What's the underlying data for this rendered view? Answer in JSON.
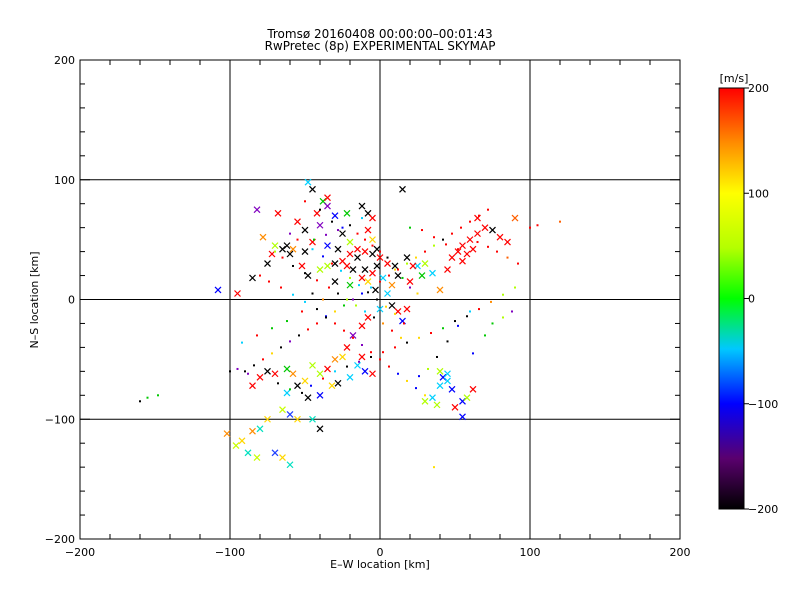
{
  "chart_data": {
    "type": "scatter",
    "title": "Tromsø 20160408 00:00:00–00:01:43",
    "subtitle": "RwPretec (8p) EXPERIMENTAL SKYMAP",
    "xlabel": "E–W location [km]",
    "ylabel": "N–S location [km]",
    "xlim": [
      -200,
      200
    ],
    "ylim": [
      -200,
      200
    ],
    "xticks": [
      "−200",
      "−100",
      "0",
      "100",
      "200"
    ],
    "yticks": [
      "−200",
      "−100",
      "0",
      "100",
      "200"
    ],
    "grid": true,
    "colorbar": {
      "unit": "[m/s]",
      "range": [
        -200,
        200
      ],
      "ticks": [
        "200",
        "100",
        "0",
        "−100",
        "−200"
      ]
    },
    "x_marker_points": [
      [
        -48,
        98
      ],
      [
        -45,
        92
      ],
      [
        -38,
        82
      ],
      [
        -35,
        78
      ],
      [
        -30,
        70
      ],
      [
        -22,
        72
      ],
      [
        -12,
        78
      ],
      [
        -8,
        72
      ],
      [
        -5,
        68
      ],
      [
        -82,
        75
      ],
      [
        -68,
        72
      ],
      [
        -55,
        65
      ],
      [
        -40,
        62
      ],
      [
        -62,
        45
      ],
      [
        -58,
        42
      ],
      [
        -50,
        40
      ],
      [
        -45,
        48
      ],
      [
        -35,
        45
      ],
      [
        -28,
        42
      ],
      [
        -20,
        38
      ],
      [
        -15,
        35
      ],
      [
        -10,
        40
      ],
      [
        -5,
        38
      ],
      [
        0,
        35
      ],
      [
        5,
        30
      ],
      [
        10,
        28
      ],
      [
        -30,
        30
      ],
      [
        -25,
        32
      ],
      [
        -22,
        28
      ],
      [
        -18,
        25
      ],
      [
        -35,
        28
      ],
      [
        -40,
        25
      ],
      [
        -10,
        25
      ],
      [
        -5,
        22
      ],
      [
        -2,
        28
      ],
      [
        -70,
        45
      ],
      [
        -75,
        30
      ],
      [
        -85,
        18
      ],
      [
        -95,
        5
      ],
      [
        -108,
        8
      ],
      [
        -78,
        52
      ],
      [
        -65,
        42
      ],
      [
        -52,
        28
      ],
      [
        -48,
        20
      ],
      [
        -30,
        15
      ],
      [
        -20,
        12
      ],
      [
        -12,
        18
      ],
      [
        -8,
        15
      ],
      [
        2,
        18
      ],
      [
        8,
        12
      ],
      [
        12,
        20
      ],
      [
        20,
        15
      ],
      [
        25,
        28
      ],
      [
        18,
        35
      ],
      [
        30,
        30
      ],
      [
        35,
        22
      ],
      [
        40,
        8
      ],
      [
        45,
        25
      ],
      [
        48,
        35
      ],
      [
        52,
        40
      ],
      [
        55,
        45
      ],
      [
        58,
        38
      ],
      [
        60,
        50
      ],
      [
        62,
        42
      ],
      [
        65,
        55
      ],
      [
        70,
        60
      ],
      [
        75,
        58
      ],
      [
        80,
        52
      ],
      [
        85,
        48
      ],
      [
        90,
        68
      ],
      [
        65,
        68
      ],
      [
        55,
        32
      ],
      [
        -18,
        -30
      ],
      [
        -22,
        -40
      ],
      [
        -25,
        -48
      ],
      [
        -30,
        -50
      ],
      [
        -15,
        -55
      ],
      [
        -10,
        -60
      ],
      [
        -5,
        -62
      ],
      [
        -12,
        -48
      ],
      [
        -20,
        -65
      ],
      [
        -28,
        -70
      ],
      [
        -35,
        -58
      ],
      [
        -40,
        -62
      ],
      [
        -45,
        -55
      ],
      [
        -50,
        -68
      ],
      [
        -58,
        -62
      ],
      [
        -62,
        -58
      ],
      [
        -70,
        -62
      ],
      [
        -75,
        -60
      ],
      [
        -80,
        -65
      ],
      [
        -85,
        -72
      ],
      [
        -62,
        -78
      ],
      [
        -55,
        -72
      ],
      [
        -48,
        -82
      ],
      [
        -40,
        -80
      ],
      [
        -32,
        -72
      ],
      [
        -65,
        -92
      ],
      [
        -60,
        -96
      ],
      [
        -55,
        -100
      ],
      [
        -75,
        -100
      ],
      [
        -80,
        -108
      ],
      [
        -85,
        -110
      ],
      [
        -92,
        -118
      ],
      [
        -96,
        -122
      ],
      [
        -88,
        -128
      ],
      [
        -82,
        -132
      ],
      [
        -70,
        -128
      ],
      [
        -65,
        -132
      ],
      [
        -60,
        -138
      ],
      [
        -45,
        -100
      ],
      [
        -40,
        -108
      ],
      [
        -102,
        -112
      ],
      [
        30,
        -85
      ],
      [
        35,
        -82
      ],
      [
        40,
        -72
      ],
      [
        42,
        -65
      ],
      [
        45,
        -68
      ],
      [
        50,
        -90
      ],
      [
        55,
        -85
      ],
      [
        58,
        -82
      ],
      [
        62,
        -75
      ],
      [
        55,
        -98
      ],
      [
        40,
        -60
      ],
      [
        45,
        -62
      ],
      [
        48,
        -75
      ],
      [
        38,
        -88
      ],
      [
        -5,
        50
      ],
      [
        -15,
        42
      ],
      [
        -20,
        48
      ],
      [
        -25,
        55
      ],
      [
        15,
        92
      ],
      [
        -35,
        85
      ],
      [
        -42,
        72
      ],
      [
        -50,
        58
      ],
      [
        -60,
        38
      ],
      [
        -72,
        38
      ],
      [
        -2,
        42
      ],
      [
        -8,
        58
      ],
      [
        22,
        28
      ],
      [
        28,
        20
      ],
      [
        -12,
        -22
      ],
      [
        -8,
        -15
      ],
      [
        0,
        -8
      ],
      [
        5,
        5
      ],
      [
        -3,
        8
      ],
      [
        8,
        -5
      ],
      [
        12,
        -10
      ],
      [
        15,
        -18
      ],
      [
        18,
        -8
      ]
    ],
    "dot_marker_points": [
      [
        -50,
        82
      ],
      [
        -40,
        75
      ],
      [
        -32,
        65
      ],
      [
        -25,
        60
      ],
      [
        -15,
        55
      ],
      [
        -10,
        50
      ],
      [
        -5,
        45
      ],
      [
        0,
        40
      ],
      [
        5,
        35
      ],
      [
        10,
        25
      ],
      [
        15,
        18
      ],
      [
        20,
        10
      ],
      [
        25,
        5
      ],
      [
        -60,
        55
      ],
      [
        -55,
        50
      ],
      [
        -45,
        42
      ],
      [
        -38,
        36
      ],
      [
        -32,
        30
      ],
      [
        -26,
        24
      ],
      [
        -20,
        18
      ],
      [
        -14,
        12
      ],
      [
        -8,
        6
      ],
      [
        -2,
        0
      ],
      [
        4,
        -6
      ],
      [
        10,
        -12
      ],
      [
        16,
        -20
      ],
      [
        -70,
        40
      ],
      [
        -65,
        35
      ],
      [
        -58,
        28
      ],
      [
        -50,
        22
      ],
      [
        -42,
        16
      ],
      [
        -34,
        10
      ],
      [
        -28,
        5
      ],
      [
        -22,
        0
      ],
      [
        -16,
        -5
      ],
      [
        -10,
        -10
      ],
      [
        -4,
        -15
      ],
      [
        2,
        -20
      ],
      [
        8,
        -26
      ],
      [
        14,
        -32
      ],
      [
        -80,
        20
      ],
      [
        -74,
        15
      ],
      [
        -66,
        10
      ],
      [
        -58,
        4
      ],
      [
        -50,
        -2
      ],
      [
        -42,
        -8
      ],
      [
        -36,
        -14
      ],
      [
        -30,
        -20
      ],
      [
        -24,
        -26
      ],
      [
        -18,
        -32
      ],
      [
        -12,
        -38
      ],
      [
        -6,
        -44
      ],
      [
        0,
        -50
      ],
      [
        6,
        -56
      ],
      [
        12,
        -62
      ],
      [
        18,
        -68
      ],
      [
        24,
        -74
      ],
      [
        30,
        -80
      ],
      [
        -90,
        -60
      ],
      [
        -84,
        -55
      ],
      [
        -78,
        -50
      ],
      [
        -72,
        -45
      ],
      [
        -66,
        -40
      ],
      [
        -60,
        -35
      ],
      [
        -54,
        -30
      ],
      [
        -48,
        -25
      ],
      [
        -42,
        -20
      ],
      [
        -36,
        -15
      ],
      [
        -30,
        -10
      ],
      [
        -24,
        -5
      ],
      [
        -18,
        0
      ],
      [
        -12,
        5
      ],
      [
        -6,
        10
      ],
      [
        0,
        15
      ],
      [
        6,
        20
      ],
      [
        12,
        25
      ],
      [
        18,
        30
      ],
      [
        24,
        35
      ],
      [
        30,
        40
      ],
      [
        36,
        45
      ],
      [
        42,
        50
      ],
      [
        48,
        55
      ],
      [
        54,
        60
      ],
      [
        60,
        65
      ],
      [
        66,
        70
      ],
      [
        72,
        75
      ],
      [
        100,
        60
      ],
      [
        105,
        62
      ],
      [
        120,
        65
      ],
      [
        -155,
        -82
      ],
      [
        -160,
        -85
      ],
      [
        -148,
        -80
      ],
      [
        36,
        -140
      ],
      [
        62,
        -45
      ],
      [
        70,
        -30
      ],
      [
        75,
        -20
      ],
      [
        82,
        -15
      ],
      [
        88,
        -10
      ],
      [
        60,
        -10
      ],
      [
        52,
        -22
      ],
      [
        45,
        -35
      ],
      [
        38,
        -48
      ],
      [
        32,
        -58
      ],
      [
        26,
        -64
      ],
      [
        -100,
        -60
      ],
      [
        -95,
        -58
      ],
      [
        -88,
        -62
      ],
      [
        -68,
        -70
      ],
      [
        -60,
        -75
      ],
      [
        -52,
        -78
      ],
      [
        -46,
        -72
      ],
      [
        -38,
        -66
      ],
      [
        -30,
        -60
      ],
      [
        -22,
        -56
      ],
      [
        -14,
        -52
      ],
      [
        -6,
        -48
      ],
      [
        2,
        -44
      ],
      [
        10,
        -40
      ],
      [
        18,
        -36
      ],
      [
        26,
        -32
      ],
      [
        34,
        -28
      ],
      [
        42,
        -24
      ],
      [
        50,
        -18
      ],
      [
        58,
        -14
      ],
      [
        66,
        -8
      ],
      [
        74,
        -2
      ],
      [
        82,
        4
      ],
      [
        90,
        10
      ],
      [
        -45,
        5
      ],
      [
        -38,
        0
      ],
      [
        -52,
        -10
      ],
      [
        -62,
        -18
      ],
      [
        -72,
        -24
      ],
      [
        -82,
        -30
      ],
      [
        -92,
        -36
      ],
      [
        20,
        60
      ],
      [
        28,
        58
      ],
      [
        36,
        52
      ],
      [
        44,
        46
      ],
      [
        52,
        42
      ],
      [
        65,
        48
      ],
      [
        72,
        44
      ],
      [
        78,
        40
      ],
      [
        85,
        35
      ],
      [
        92,
        30
      ],
      [
        -12,
        68
      ],
      [
        -20,
        62
      ],
      [
        -28,
        58
      ],
      [
        -36,
        54
      ],
      [
        -44,
        50
      ]
    ]
  }
}
